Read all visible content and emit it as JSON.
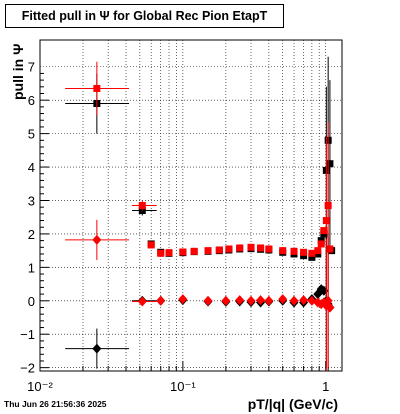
{
  "title": "Fitted pull in  Ψ  for Global Rec Pion EtapT",
  "footer": "Thu Jun 26 21:56:36 2025",
  "chart_data": {
    "type": "scatter",
    "title": "Fitted pull in  Ψ  for Global Rec Pion EtapT",
    "xlabel": "pT/|q| (GeV/c)",
    "ylabel": "pull in  Ψ",
    "xscale": "log",
    "xlim": [
      0.01,
      1.3
    ],
    "ylim": [
      -2.1,
      7.8
    ],
    "grid": true,
    "x_tick_labels": [
      "10⁻²",
      "10⁻¹",
      "1"
    ],
    "y_tick_labels": [
      "−2",
      "−1",
      "0",
      "1",
      "2",
      "3",
      "4",
      "5",
      "6",
      "7"
    ],
    "series": [
      {
        "color": "#000000",
        "marker": "square",
        "points": [
          {
            "x": 0.025,
            "y": 5.9,
            "xerr": 0.01,
            "yerr": 0.9
          },
          {
            "x": 0.052,
            "y": 2.7,
            "xerr": 0.008,
            "yerr": 0.15
          },
          {
            "x": 0.06,
            "y": 1.7
          },
          {
            "x": 0.07,
            "y": 1.45
          },
          {
            "x": 0.08,
            "y": 1.42
          },
          {
            "x": 0.1,
            "y": 1.44
          },
          {
            "x": 0.12,
            "y": 1.47
          },
          {
            "x": 0.15,
            "y": 1.48
          },
          {
            "x": 0.18,
            "y": 1.5
          },
          {
            "x": 0.21,
            "y": 1.52
          },
          {
            "x": 0.25,
            "y": 1.55
          },
          {
            "x": 0.3,
            "y": 1.56
          },
          {
            "x": 0.35,
            "y": 1.54
          },
          {
            "x": 0.4,
            "y": 1.52
          },
          {
            "x": 0.5,
            "y": 1.45
          },
          {
            "x": 0.6,
            "y": 1.4
          },
          {
            "x": 0.7,
            "y": 1.35
          },
          {
            "x": 0.8,
            "y": 1.3
          },
          {
            "x": 0.88,
            "y": 1.4
          },
          {
            "x": 0.93,
            "y": 1.8
          },
          {
            "x": 0.97,
            "y": 2.0
          },
          {
            "x": 1.01,
            "y": 3.9,
            "yerr": 2.5
          },
          {
            "x": 1.04,
            "y": 4.8,
            "yerr": 2.5
          },
          {
            "x": 1.07,
            "y": 4.1,
            "yerr": 2.5
          },
          {
            "x": 1.1,
            "y": 1.5
          }
        ]
      },
      {
        "color": "#ff0000",
        "marker": "square",
        "points": [
          {
            "x": 0.025,
            "y": 6.35,
            "xerr": 0.01,
            "yerr": 0.8
          },
          {
            "x": 0.052,
            "y": 2.85,
            "xerr": 0.008,
            "yerr": 0.15
          },
          {
            "x": 0.06,
            "y": 1.67
          },
          {
            "x": 0.07,
            "y": 1.42
          },
          {
            "x": 0.08,
            "y": 1.44
          },
          {
            "x": 0.1,
            "y": 1.46
          },
          {
            "x": 0.12,
            "y": 1.48
          },
          {
            "x": 0.15,
            "y": 1.5
          },
          {
            "x": 0.18,
            "y": 1.52
          },
          {
            "x": 0.21,
            "y": 1.55
          },
          {
            "x": 0.25,
            "y": 1.58
          },
          {
            "x": 0.3,
            "y": 1.6
          },
          {
            "x": 0.35,
            "y": 1.58
          },
          {
            "x": 0.4,
            "y": 1.55
          },
          {
            "x": 0.5,
            "y": 1.5
          },
          {
            "x": 0.6,
            "y": 1.48
          },
          {
            "x": 0.7,
            "y": 1.45
          },
          {
            "x": 0.8,
            "y": 1.42
          },
          {
            "x": 0.88,
            "y": 1.5
          },
          {
            "x": 0.93,
            "y": 1.7
          },
          {
            "x": 0.97,
            "y": 2.1
          },
          {
            "x": 1.01,
            "y": 2.4,
            "yerr": 2.5
          },
          {
            "x": 1.04,
            "y": 2.85,
            "yerr": 2.5
          },
          {
            "x": 1.07,
            "y": 1.55
          }
        ]
      },
      {
        "color": "#000000",
        "marker": "diamond",
        "points": [
          {
            "x": 0.025,
            "y": -1.43,
            "xerr": 0.01,
            "yerr": 0.6
          },
          {
            "x": 0.052,
            "y": 0.0,
            "xerr": 0.008,
            "yerr": 0.1
          },
          {
            "x": 0.07,
            "y": 0.0
          },
          {
            "x": 0.1,
            "y": 0.02
          },
          {
            "x": 0.15,
            "y": -0.02
          },
          {
            "x": 0.2,
            "y": -0.03
          },
          {
            "x": 0.25,
            "y": -0.02
          },
          {
            "x": 0.3,
            "y": -0.04
          },
          {
            "x": 0.35,
            "y": -0.05
          },
          {
            "x": 0.4,
            "y": -0.02
          },
          {
            "x": 0.5,
            "y": 0.0
          },
          {
            "x": 0.6,
            "y": -0.05
          },
          {
            "x": 0.7,
            "y": -0.05
          },
          {
            "x": 0.8,
            "y": 0.05
          },
          {
            "x": 0.88,
            "y": 0.2
          },
          {
            "x": 0.93,
            "y": 0.35
          },
          {
            "x": 0.97,
            "y": 0.3
          },
          {
            "x": 1.01,
            "y": 0.0,
            "yerr": 2.0
          },
          {
            "x": 1.04,
            "y": -0.1,
            "yerr": 2.0
          },
          {
            "x": 1.07,
            "y": -0.2
          }
        ]
      },
      {
        "color": "#ff0000",
        "marker": "diamond",
        "points": [
          {
            "x": 0.025,
            "y": 1.82,
            "xerr": 0.01,
            "yerr": 0.6
          },
          {
            "x": 0.052,
            "y": -0.02,
            "xerr": 0.008,
            "yerr": 0.1
          },
          {
            "x": 0.07,
            "y": 0.0
          },
          {
            "x": 0.1,
            "y": 0.05
          },
          {
            "x": 0.15,
            "y": 0.0
          },
          {
            "x": 0.2,
            "y": 0.0
          },
          {
            "x": 0.25,
            "y": 0.02
          },
          {
            "x": 0.3,
            "y": 0.0
          },
          {
            "x": 0.35,
            "y": 0.02
          },
          {
            "x": 0.4,
            "y": 0.0
          },
          {
            "x": 0.5,
            "y": 0.05
          },
          {
            "x": 0.6,
            "y": 0.0
          },
          {
            "x": 0.7,
            "y": 0.02
          },
          {
            "x": 0.8,
            "y": 0.0
          },
          {
            "x": 0.88,
            "y": -0.05
          },
          {
            "x": 0.93,
            "y": -0.1
          },
          {
            "x": 0.97,
            "y": -0.05
          },
          {
            "x": 1.01,
            "y": -0.15,
            "yerr": 2.0
          },
          {
            "x": 1.04,
            "y": 0.0,
            "yerr": 2.0
          },
          {
            "x": 1.07,
            "y": -0.2
          }
        ]
      }
    ]
  }
}
